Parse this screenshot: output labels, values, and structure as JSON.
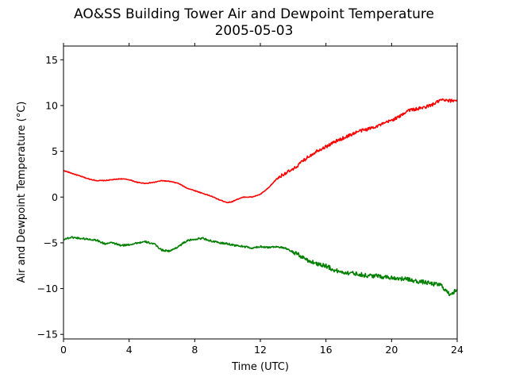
{
  "chart_data": {
    "type": "line",
    "title": "AO&SS Building Tower Air and Dewpoint Temperature",
    "subtitle": "2005-05-03",
    "xlabel": "Time (UTC)",
    "ylabel": "Air and Dewpoint Temperature (°C)",
    "xlim": [
      0,
      24
    ],
    "ylim": [
      -15.5,
      16.5
    ],
    "xticks": [
      "0",
      "4",
      "8",
      "12",
      "16",
      "20",
      "24"
    ],
    "yticks": [
      "-15",
      "-10",
      "-5",
      "0",
      "5",
      "10",
      "15"
    ],
    "grid": false,
    "legend": "none",
    "series": [
      {
        "color": "#ff0000",
        "x": [
          0,
          0.5,
          1,
          1.5,
          2,
          2.5,
          3,
          3.5,
          4,
          4.5,
          5,
          5.5,
          6,
          6.5,
          7,
          7.5,
          8,
          8.5,
          9,
          9.5,
          10,
          10.3,
          10.5,
          11,
          11.5,
          12,
          12.5,
          13,
          13.5,
          14,
          14.5,
          15,
          15.5,
          16,
          16.5,
          17,
          17.5,
          18,
          18.5,
          19,
          19.5,
          20,
          20.5,
          21,
          21.5,
          22,
          22.5,
          23,
          23.5,
          24
        ],
        "y": [
          2.9,
          2.6,
          2.3,
          2.0,
          1.8,
          1.8,
          1.9,
          2.0,
          1.9,
          1.6,
          1.5,
          1.6,
          1.8,
          1.7,
          1.5,
          1.0,
          0.7,
          0.4,
          0.1,
          -0.3,
          -0.6,
          -0.5,
          -0.3,
          0.0,
          0.0,
          0.3,
          1.0,
          2.0,
          2.6,
          3.0,
          3.8,
          4.5,
          5.1,
          5.5,
          6.0,
          6.4,
          6.8,
          7.2,
          7.4,
          7.7,
          8.0,
          8.4,
          8.8,
          9.5,
          9.6,
          9.8,
          10.1,
          10.6,
          10.5,
          10.6
        ]
      },
      {
        "color": "#008000",
        "x": [
          0,
          0.5,
          1,
          1.5,
          2,
          2.5,
          3,
          3.5,
          4,
          4.5,
          5,
          5.5,
          6,
          6.5,
          7,
          7.5,
          8,
          8.5,
          9,
          9.5,
          10,
          10.5,
          11,
          11.5,
          12,
          12.5,
          13,
          13.5,
          14,
          14.5,
          15,
          15.5,
          16,
          16.5,
          17,
          17.5,
          18,
          18.5,
          19,
          19.5,
          20,
          20.5,
          21,
          21.5,
          22,
          22.5,
          23,
          23.5,
          24
        ],
        "y": [
          -4.6,
          -4.4,
          -4.5,
          -4.6,
          -4.7,
          -5.1,
          -5.0,
          -5.3,
          -5.2,
          -5.0,
          -4.9,
          -5.1,
          -5.8,
          -5.9,
          -5.4,
          -4.8,
          -4.6,
          -4.5,
          -4.8,
          -5.0,
          -5.1,
          -5.3,
          -5.4,
          -5.6,
          -5.4,
          -5.5,
          -5.4,
          -5.6,
          -6.0,
          -6.5,
          -7.0,
          -7.3,
          -7.5,
          -8.0,
          -8.2,
          -8.3,
          -8.4,
          -8.6,
          -8.6,
          -8.7,
          -8.8,
          -8.9,
          -9.0,
          -9.2,
          -9.3,
          -9.5,
          -9.6,
          -10.6,
          -10.2
        ]
      }
    ]
  }
}
